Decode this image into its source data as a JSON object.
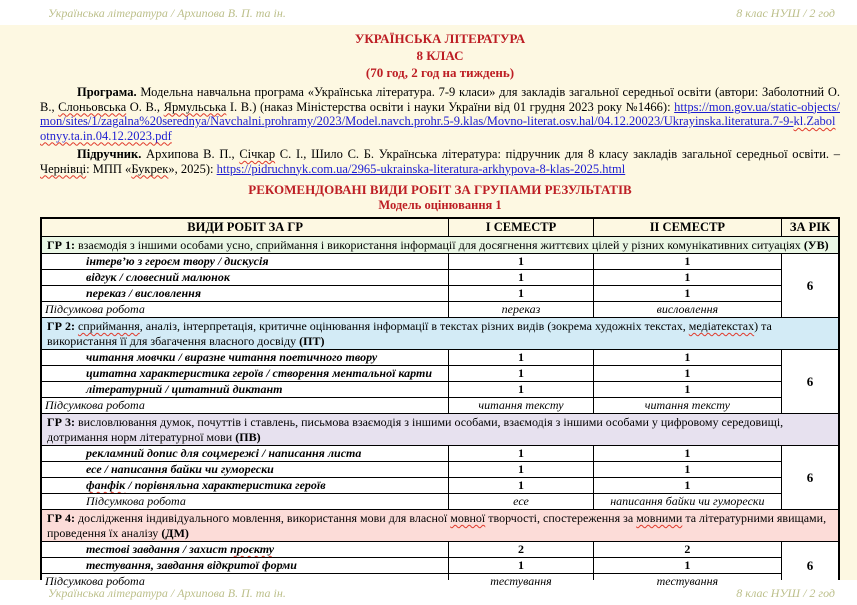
{
  "header": {
    "left": "Українська література / Архипова В. П. та ін.",
    "right": "8 клас НУШ / 2 год"
  },
  "footer": {
    "left": "Українська література / Архипова В. П. та ін.",
    "right": "8 клас НУШ / 2 год"
  },
  "title": {
    "line1": "УКРАЇНСЬКА ЛІТЕРАТУРА",
    "line2": "8 КЛАС",
    "line3": "(70 год, 2 год на тиждень)"
  },
  "colors": {
    "page_background": "#fdf8e2",
    "title_red": "#bd1e24",
    "link_blue": "#1d1dd1",
    "margin_text": "#bcbf8a",
    "spellcheck_red": "#e0392b"
  },
  "paragraphs": {
    "program": [
      {
        "t": "Програма.",
        "b": true
      },
      {
        "t": " Модельна навчальна програма «Українська література. 7-9 класи» для закладів загальної середньої освіти (автори: Заболотний О. В., "
      },
      {
        "t": "Слоньовська",
        "sq": true
      },
      {
        "t": " О. В., "
      },
      {
        "t": "Ярмульська",
        "sq": true
      },
      {
        "t": " І. В.) (наказ Міністерства освіти і науки України від 01 грудня 2023 року №1466): "
      },
      {
        "t": "https://mon.gov.ua/static-objects/mon/sites/1/zagalna%20serednya/Navchalni.prohramy/2023/Model.navch.prohr.5-9.klas/Movno-literat.osv.hal/04.12.20023/Ukrayinska.literatura.7-9-",
        "link": true,
        "name": "program-link"
      },
      {
        "t": "kl.Zabolotnyy.ta.in.04.12.2023.pdf",
        "link": true,
        "sq": true,
        "name": "program-link-tail"
      }
    ],
    "textbook": [
      {
        "t": "Підручник.",
        "b": true
      },
      {
        "t": " Архипова В. П., "
      },
      {
        "t": "Січкар",
        "sq": true
      },
      {
        "t": " С. І., Шило С. Б. Українська література: підручник для 8 класу закладів загальної середньої освіти. – "
      },
      {
        "t": "Чернівці",
        "sq": true
      },
      {
        "t": ": МПП «"
      },
      {
        "t": "Букрек",
        "sq": true
      },
      {
        "t": "», 2025): "
      },
      {
        "t": "https://pidruchnyk.com.ua/2965-ukrainska-literatura-arkhypova-8-klas-2025.html",
        "link": true,
        "name": "textbook-link"
      }
    ]
  },
  "section": {
    "heading": "РЕКОМЕНДОВАНІ ВИДИ РОБІТ ЗА ГРУПАМИ РЕЗУЛЬТАТІВ",
    "subheading": "Модель оцінювання 1"
  },
  "table": {
    "columns": [
      "ВИДИ РОБІТ ЗА ГР",
      "І СЕМЕСТР",
      "ІІ СЕМЕСТР",
      "ЗА РІК"
    ],
    "groups": [
      {
        "bg": "#eaf7e5",
        "band": [
          {
            "t": "ГР 1:",
            "b": true
          },
          {
            "t": " взаємодія з іншими особами усно, сприймання і використання інформації для досягнення життєвих цілей у різних комунікативних ситуаціях "
          },
          {
            "t": "(УВ)",
            "b": true
          }
        ],
        "rows": [
          {
            "segments": [
              {
                "t": "інтерв’ю з героєм твору / дискусія"
              }
            ],
            "sem1": "1",
            "sem2": "1"
          },
          {
            "segments": [
              {
                "t": "відгук / словесний малюнок"
              }
            ],
            "sem1": "1",
            "sem2": "1"
          },
          {
            "segments": [
              {
                "t": "переказ / висловлення"
              }
            ],
            "sem1": "1",
            "sem2": "1"
          }
        ],
        "summary": {
          "label": "Підсумкова робота",
          "sem1": "переказ",
          "sem2": "висловлення",
          "indent": false
        },
        "year_total": "6"
      },
      {
        "bg": "#d3ebf6",
        "band": [
          {
            "t": "ГР 2:",
            "b": true
          },
          {
            "t": " "
          },
          {
            "t": "сприймання",
            "sq": true
          },
          {
            "t": ", аналіз, інтерпретація, критичне оцінювання інформації в текстах різних видів (зокрема художніх текстах, "
          },
          {
            "t": "медіатекстах",
            "sq": true
          },
          {
            "t": ") та використання її для збагачення власного досвіду "
          },
          {
            "t": "(ПТ)",
            "b": true
          }
        ],
        "rows": [
          {
            "segments": [
              {
                "t": "читання мовчки / виразне читання поетичного твору"
              }
            ],
            "sem1": "1",
            "sem2": "1"
          },
          {
            "segments": [
              {
                "t": "цитатна характеристика героїв / створення ментальної карти"
              }
            ],
            "sem1": "1",
            "sem2": "1"
          },
          {
            "segments": [
              {
                "t": "літературний / цитатний диктант"
              }
            ],
            "sem1": "1",
            "sem2": "1"
          }
        ],
        "summary": {
          "label": "Підсумкова робота",
          "sem1": "читання тексту",
          "sem2": "читання тексту",
          "indent": false
        },
        "year_total": "6"
      },
      {
        "bg": "#e7e1ef",
        "band": [
          {
            "t": "ГР 3:",
            "b": true
          },
          {
            "t": " висловлювання думок, почуттів і ставлень, письмова взаємодія з іншими особами, взаємодія з іншими особами у цифровому середовищі, дотримання норм літературної мови "
          },
          {
            "t": "(ПВ)",
            "b": true
          }
        ],
        "rows": [
          {
            "segments": [
              {
                "t": "рекламний допис для соцмережі / написання листа"
              }
            ],
            "sem1": "1",
            "sem2": "1"
          },
          {
            "segments": [
              {
                "t": "есе / написання байки чи гуморески"
              }
            ],
            "sem1": "1",
            "sem2": "1"
          },
          {
            "segments": [
              {
                "t": "фанфік",
                "sq": true
              },
              {
                "t": " / порівняльна характеристика героїв"
              }
            ],
            "sem1": "1",
            "sem2": "1"
          }
        ],
        "summary": {
          "label": "Підсумкова робота",
          "sem1": "есе",
          "sem2": "написання байки чи гуморески",
          "indent": true
        },
        "year_total": "6"
      },
      {
        "bg": "#fcdcd8",
        "band": [
          {
            "t": "ГР 4:",
            "b": true
          },
          {
            "t": " дослідження індивідуального мовлення, використання мови для власної "
          },
          {
            "t": "мовної",
            "sq": true
          },
          {
            "t": " творчості, спостереження за "
          },
          {
            "t": "мовними",
            "sq": true
          },
          {
            "t": " та літературними явищами, проведення їх аналізу "
          },
          {
            "t": "(ДМ)",
            "b": true
          }
        ],
        "rows": [
          {
            "segments": [
              {
                "t": "тестові завдання / захист "
              },
              {
                "t": "проєкту",
                "sq": true
              }
            ],
            "sem1": "2",
            "sem2": "2"
          },
          {
            "segments": [
              {
                "t": "тестування, завдання відкритої форми"
              }
            ],
            "sem1": "1",
            "sem2": "1"
          }
        ],
        "summary": {
          "label": "Підсумкова робота",
          "sem1": "тестування",
          "sem2": "тестування",
          "indent": false
        },
        "year_total": "6"
      }
    ]
  }
}
